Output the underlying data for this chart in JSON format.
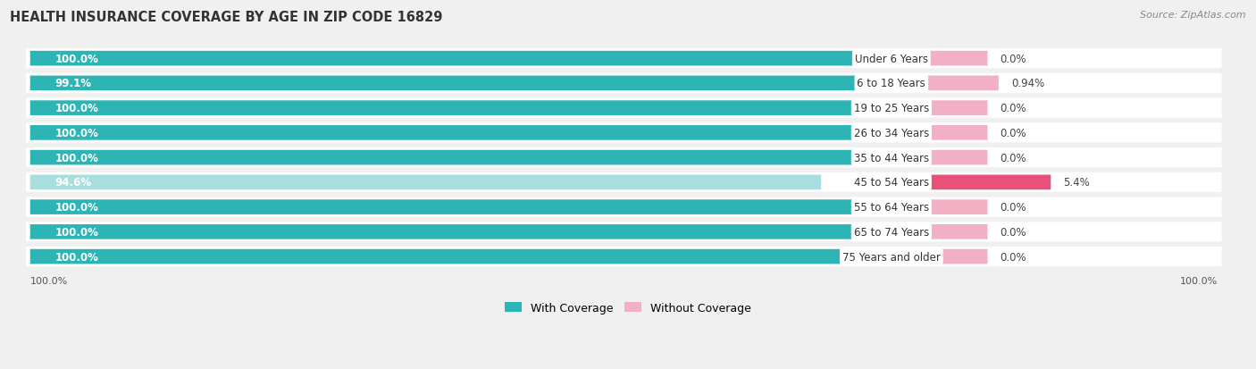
{
  "title": "HEALTH INSURANCE COVERAGE BY AGE IN ZIP CODE 16829",
  "source": "Source: ZipAtlas.com",
  "categories": [
    "Under 6 Years",
    "6 to 18 Years",
    "19 to 25 Years",
    "26 to 34 Years",
    "35 to 44 Years",
    "45 to 54 Years",
    "55 to 64 Years",
    "65 to 74 Years",
    "75 Years and older"
  ],
  "with_coverage": [
    100.0,
    99.1,
    100.0,
    100.0,
    100.0,
    94.6,
    100.0,
    100.0,
    100.0
  ],
  "without_coverage": [
    0.0,
    0.94,
    0.0,
    0.0,
    0.0,
    5.4,
    0.0,
    0.0,
    0.0
  ],
  "with_coverage_labels": [
    "100.0%",
    "99.1%",
    "100.0%",
    "100.0%",
    "100.0%",
    "94.6%",
    "100.0%",
    "100.0%",
    "100.0%"
  ],
  "without_coverage_labels": [
    "0.0%",
    "0.94%",
    "0.0%",
    "0.0%",
    "0.0%",
    "5.4%",
    "0.0%",
    "0.0%",
    "0.0%"
  ],
  "color_with_full": "#2db5b5",
  "color_with_partial": "#a8dede",
  "color_without_light": "#f2b0c5",
  "color_without_dark": "#e8527a",
  "bg_color": "#f0f0f0",
  "bar_bg": "#ffffff",
  "title_fontsize": 10.5,
  "label_fontsize": 8.5,
  "cat_fontsize": 8.5,
  "legend_fontsize": 9,
  "source_fontsize": 8
}
